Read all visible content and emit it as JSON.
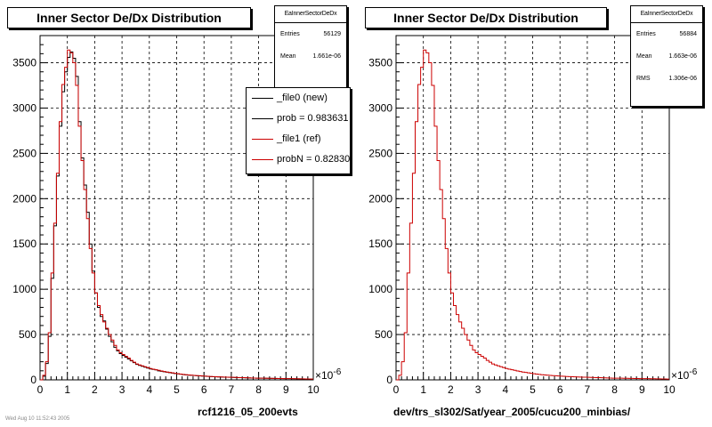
{
  "colors": {
    "file0": "#000000",
    "file1": "#cc0000",
    "background": "#ffffff"
  },
  "footer_text": "Wed Aug 10 11:52:43 2005",
  "chart_data": [
    {
      "type": "histogram",
      "title": "Inner Sector De/Dx Distribution",
      "xlabel": "rcf1216_05_200evts",
      "x_multiplier": "×10",
      "x_multiplier_exp": "-6",
      "xlim": [
        0,
        10
      ],
      "ylim": [
        0,
        3800
      ],
      "grid": true,
      "xticks": [
        "0",
        "1",
        "2",
        "3",
        "4",
        "5",
        "6",
        "7",
        "8",
        "9",
        "10"
      ],
      "yticks": [
        "0",
        "500",
        "1000",
        "1500",
        "2000",
        "2500",
        "3000",
        "3500"
      ],
      "bin_width": 0.1,
      "stats": {
        "header": "EaInnerSectorDeDx",
        "rows": [
          {
            "label": "Entries",
            "value": "56129"
          },
          {
            "label": "Mean",
            "value": "1.661e-06"
          }
        ]
      },
      "legend": {
        "placement": "top-right",
        "entries": [
          {
            "label": "_file0 (new)",
            "color": "#000000"
          },
          {
            "label": "prob = 0.983631",
            "color": "#000000"
          },
          {
            "label": "_file1 (ref)",
            "color": "#cc0000"
          },
          {
            "label": "probN = 0.828302",
            "color": "#cc0000"
          }
        ]
      },
      "series": [
        {
          "name": "_file0 (new)",
          "color": "#000000",
          "values": [
            0,
            40,
            180,
            480,
            1120,
            1700,
            2250,
            2800,
            3180,
            3400,
            3560,
            3620,
            3550,
            3350,
            2850,
            2450,
            2150,
            1850,
            1500,
            1200,
            960,
            800,
            700,
            650,
            560,
            480,
            420,
            360,
            320,
            290,
            270,
            250,
            230,
            210,
            190,
            170,
            160,
            150,
            140,
            130,
            120,
            115,
            110,
            100,
            95,
            90,
            85,
            80,
            75,
            70,
            66,
            62,
            58,
            55,
            52,
            50,
            48,
            46,
            44,
            42,
            40,
            38,
            36,
            34,
            33,
            32,
            31,
            30,
            29,
            28,
            27,
            26,
            25,
            24,
            23,
            22,
            21,
            20,
            20,
            19,
            18,
            18,
            17,
            17,
            16,
            16,
            15,
            15,
            14,
            14,
            13,
            13,
            12,
            12,
            11,
            11,
            10,
            10,
            9,
            9
          ]
        },
        {
          "name": "_file1 (ref)",
          "color": "#cc0000",
          "values": [
            0,
            50,
            200,
            520,
            1180,
            1730,
            2280,
            2850,
            3260,
            3450,
            3640,
            3610,
            3500,
            3250,
            2800,
            2420,
            2100,
            1780,
            1450,
            1180,
            960,
            820,
            720,
            640,
            570,
            500,
            440,
            380,
            330,
            300,
            280,
            260,
            240,
            215,
            195,
            175,
            165,
            155,
            145,
            135,
            125,
            118,
            112,
            105,
            98,
            92,
            86,
            82,
            77,
            72,
            68,
            64,
            60,
            57,
            54,
            51,
            49,
            47,
            45,
            43,
            41,
            39,
            37,
            35,
            34,
            33,
            32,
            31,
            30,
            29,
            28,
            27,
            26,
            25,
            24,
            23,
            22,
            21,
            20,
            19,
            19,
            18,
            18,
            17,
            17,
            16,
            16,
            15,
            15,
            14,
            14,
            13,
            13,
            12,
            12,
            11,
            11,
            10,
            10,
            9
          ]
        }
      ]
    },
    {
      "type": "histogram",
      "title": "Inner Sector De/Dx Distribution",
      "xlabel": "dev/trs_sl302/Sat/year_2005/cucu200_minbias/",
      "x_multiplier": "×10",
      "x_multiplier_exp": "-6",
      "xlim": [
        0,
        10
      ],
      "ylim": [
        0,
        3800
      ],
      "grid": true,
      "xticks": [
        "0",
        "1",
        "2",
        "3",
        "4",
        "5",
        "6",
        "7",
        "8",
        "9",
        "10"
      ],
      "yticks": [
        "0",
        "500",
        "1000",
        "1500",
        "2000",
        "2500",
        "3000",
        "3500"
      ],
      "bin_width": 0.1,
      "stats": {
        "header": "EaInnerSectorDeDx",
        "rows": [
          {
            "label": "Entries",
            "value": "56884"
          },
          {
            "label": "Mean",
            "value": "1.663e-06"
          },
          {
            "label": "RMS",
            "value": "1.306e-06"
          }
        ]
      },
      "series": [
        {
          "color": "#cc0000",
          "values": [
            0,
            50,
            200,
            520,
            1180,
            1730,
            2280,
            2850,
            3260,
            3450,
            3640,
            3610,
            3500,
            3250,
            2800,
            2420,
            2100,
            1780,
            1450,
            1180,
            960,
            820,
            720,
            640,
            570,
            500,
            440,
            380,
            330,
            300,
            280,
            260,
            240,
            215,
            195,
            175,
            165,
            155,
            145,
            135,
            125,
            118,
            112,
            105,
            98,
            92,
            86,
            82,
            77,
            72,
            68,
            64,
            60,
            57,
            54,
            51,
            49,
            47,
            45,
            43,
            41,
            39,
            37,
            35,
            34,
            33,
            32,
            31,
            30,
            29,
            28,
            27,
            26,
            25,
            24,
            23,
            22,
            21,
            20,
            19,
            19,
            18,
            18,
            17,
            17,
            16,
            16,
            15,
            15,
            14,
            14,
            13,
            13,
            12,
            12,
            11,
            11,
            10,
            10,
            9
          ]
        }
      ]
    }
  ]
}
